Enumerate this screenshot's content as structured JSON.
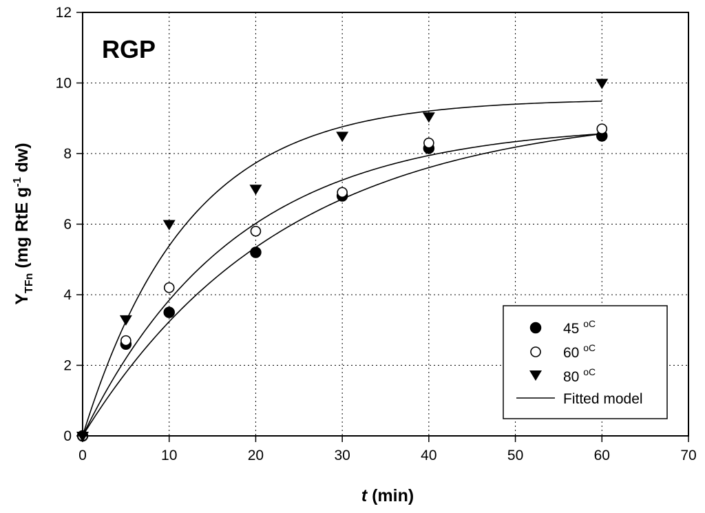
{
  "chart_data": {
    "type": "scatter",
    "panel_label": "RGP",
    "xlabel": {
      "italic": "t",
      "rest": " (min)"
    },
    "ylabel": {
      "main": "Y",
      "sub": "TFn",
      "rest1": " (mg RtE g",
      "sup": "-1",
      "rest2": " dw)"
    },
    "xlim": [
      0,
      70
    ],
    "ylim": [
      0,
      12
    ],
    "xticks": [
      0,
      10,
      20,
      30,
      40,
      50,
      60,
      70
    ],
    "yticks": [
      0,
      2,
      4,
      6,
      8,
      10,
      12
    ],
    "grid": true,
    "legend_position": "bottom-right",
    "series": [
      {
        "name": "45",
        "unit": "oC",
        "marker": "filled-circle",
        "x": [
          0,
          5,
          10,
          20,
          30,
          40,
          60
        ],
        "y": [
          0,
          2.6,
          3.5,
          5.2,
          6.8,
          8.15,
          8.5
        ],
        "fit": {
          "ymax": 9.26,
          "k": 0.043
        }
      },
      {
        "name": "60",
        "unit": "oC",
        "marker": "open-circle",
        "x": [
          0,
          5,
          10,
          20,
          30,
          40,
          60
        ],
        "y": [
          0,
          2.7,
          4.2,
          5.8,
          6.9,
          8.3,
          8.7
        ],
        "fit": {
          "ymax": 8.85,
          "k": 0.057
        }
      },
      {
        "name": "80",
        "unit": "oC",
        "marker": "filled-triangle-down",
        "x": [
          0,
          5,
          10,
          20,
          30,
          40,
          60
        ],
        "y": [
          0,
          3.3,
          6.0,
          7.0,
          8.5,
          9.05,
          10.0
        ],
        "fit": {
          "ymax": 9.55,
          "k": 0.083
        }
      }
    ],
    "fitted_model_label": "Fitted model"
  }
}
